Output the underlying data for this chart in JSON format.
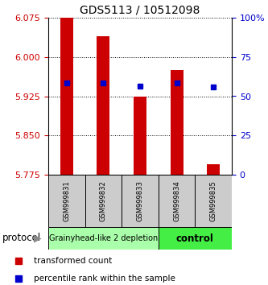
{
  "title": "GDS5113 / 10512098",
  "samples": [
    "GSM999831",
    "GSM999832",
    "GSM999833",
    "GSM999834",
    "GSM999835"
  ],
  "bar_bottoms": [
    5.775,
    5.775,
    5.775,
    5.775,
    5.775
  ],
  "bar_tops": [
    6.075,
    6.04,
    5.925,
    5.975,
    5.795
  ],
  "percentile_values": [
    5.95,
    5.95,
    5.945,
    5.95,
    5.943
  ],
  "ylim": [
    5.775,
    6.075
  ],
  "yticks_left": [
    5.775,
    5.85,
    5.925,
    6.0,
    6.075
  ],
  "yticks_right": [
    0,
    25,
    50,
    75,
    100
  ],
  "bar_color": "#cc0000",
  "percentile_color": "#0000cc",
  "grp1_label": "Grainyhead-like 2 depletion",
  "grp1_color": "#aaffaa",
  "grp2_label": "control",
  "grp2_color": "#44ee44",
  "ylabel_left_color": "#cc0000",
  "ylabel_right_color": "#0000cc",
  "title_fontsize": 10,
  "protocol_label": "protocol",
  "bar_width": 0.35,
  "tick_fontsize": 8,
  "sample_fontsize": 6,
  "protocol_fontsize": 7,
  "legend_fontsize": 7.5
}
